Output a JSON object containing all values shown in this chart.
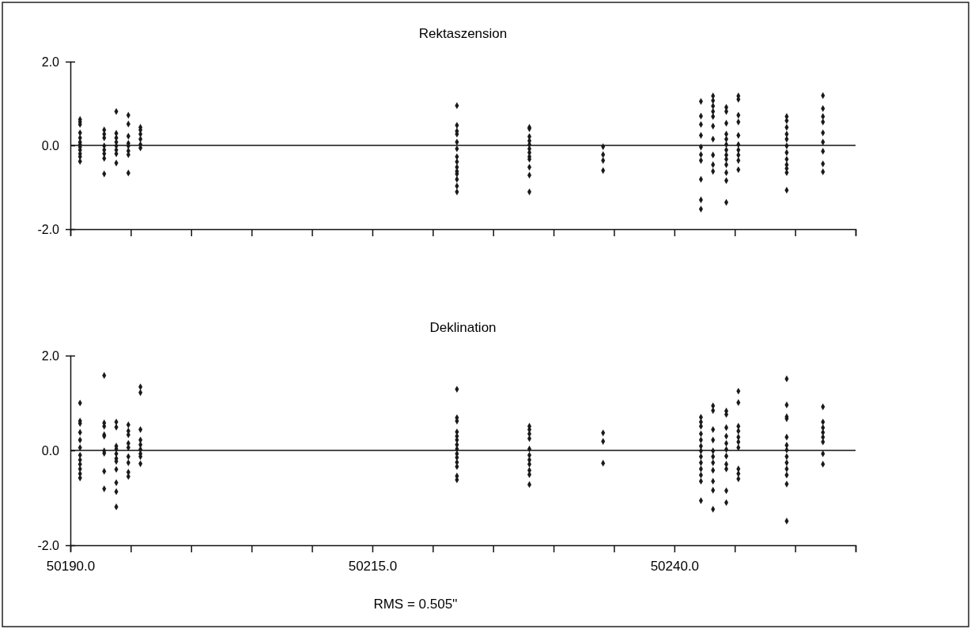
{
  "chart_data": [
    {
      "type": "scatter",
      "title": "Rektaszension",
      "xlim": [
        50190,
        50255
      ],
      "ylim": [
        -2,
        2
      ],
      "yticks": [
        {
          "value": 2,
          "label": "2.0"
        },
        {
          "value": 0,
          "label": "0.0"
        },
        {
          "value": -2,
          "label": "-2.0"
        }
      ],
      "xticks": [
        {
          "value": 50190,
          "label": null
        },
        {
          "value": 50195,
          "label": null
        },
        {
          "value": 50200,
          "label": null
        },
        {
          "value": 50205,
          "label": null
        },
        {
          "value": 50210,
          "label": null
        },
        {
          "value": 50215,
          "label": null
        },
        {
          "value": 50220,
          "label": null
        },
        {
          "value": 50225,
          "label": null
        },
        {
          "value": 50230,
          "label": null
        },
        {
          "value": 50235,
          "label": null
        },
        {
          "value": 50240,
          "label": null
        },
        {
          "value": 50245,
          "label": null
        },
        {
          "value": 50250,
          "label": null
        },
        {
          "value": 50255,
          "label": null
        }
      ],
      "tick_labels": "y",
      "marker": "diamond",
      "ref_lines": [
        {
          "axis": "y",
          "value": 0
        }
      ],
      "series": [
        {
          "color": "#1a1a1a",
          "x": [
            50190.8,
            50190.8,
            50190.8,
            50190.8,
            50190.8,
            50190.8,
            50190.8,
            50190.8,
            50190.8,
            50190.8,
            50190.8,
            50190.8,
            50192.8,
            50192.8,
            50192.8,
            50192.8,
            50192.8,
            50192.8,
            50192.8,
            50192.8,
            50193.8,
            50193.8,
            50193.8,
            50193.8,
            50193.8,
            50193.8,
            50193.8,
            50193.8,
            50194.8,
            50194.8,
            50194.8,
            50194.8,
            50194.8,
            50194.8,
            50194.8,
            50194.8,
            50195.8,
            50195.8,
            50195.8,
            50195.8,
            50195.8,
            50195.8,
            50222.0,
            50222.0,
            50222.0,
            50222.0,
            50222.0,
            50222.0,
            50222.0,
            50222.0,
            50222.0,
            50222.0,
            50222.0,
            50222.0,
            50222.0,
            50222.0,
            50228.0,
            50228.0,
            50228.0,
            50228.0,
            50228.0,
            50228.0,
            50228.0,
            50228.0,
            50228.0,
            50228.0,
            50228.0,
            50228.0,
            50234.1,
            50234.1,
            50234.1,
            50234.1,
            50242.2,
            50242.2,
            50242.2,
            50242.2,
            50242.2,
            50242.2,
            50242.2,
            50242.2,
            50242.2,
            50242.2,
            50243.2,
            50243.2,
            50243.2,
            50243.2,
            50243.2,
            50243.2,
            50243.2,
            50243.2,
            50243.2,
            50243.2,
            50244.3,
            50244.3,
            50244.3,
            50244.3,
            50244.3,
            50244.3,
            50244.3,
            50244.3,
            50244.3,
            50244.3,
            50244.3,
            50244.3,
            50244.3,
            50245.3,
            50245.3,
            50245.3,
            50245.3,
            50245.3,
            50245.3,
            50245.3,
            50245.3,
            50245.3,
            50245.3,
            50249.3,
            50249.3,
            50249.3,
            50249.3,
            50249.3,
            50249.3,
            50249.3,
            50249.3,
            50249.3,
            50249.3,
            50249.3,
            50249.3,
            50252.3,
            50252.3,
            50252.3,
            50252.3,
            50252.3,
            50252.3,
            50252.3,
            50252.3,
            50252.3
          ],
          "values": [
            0.62,
            0.56,
            0.5,
            0.3,
            0.18,
            0.08,
            0.02,
            -0.04,
            -0.11,
            -0.2,
            -0.27,
            -0.38,
            0.37,
            0.27,
            0.18,
            -0.01,
            -0.11,
            -0.2,
            -0.31,
            -0.68,
            0.81,
            0.29,
            0.18,
            0.08,
            -0.01,
            -0.11,
            -0.2,
            -0.42,
            0.72,
            0.51,
            0.22,
            0.05,
            -0.01,
            -0.13,
            -0.22,
            -0.66,
            0.43,
            0.37,
            0.27,
            0.15,
            0.02,
            -0.06,
            0.95,
            0.48,
            0.34,
            0.27,
            0.08,
            -0.08,
            -0.27,
            -0.39,
            -0.52,
            -0.62,
            -0.68,
            -0.81,
            -0.97,
            -1.11,
            0.43,
            0.4,
            0.21,
            0.11,
            0.02,
            -0.08,
            -0.17,
            -0.27,
            -0.33,
            -0.52,
            -0.71,
            -1.11,
            -0.03,
            -0.22,
            -0.36,
            -0.6,
            1.05,
            0.7,
            0.5,
            0.24,
            -0.04,
            -0.22,
            -0.36,
            -0.81,
            -1.3,
            -1.52,
            1.18,
            1.07,
            0.94,
            0.81,
            0.69,
            0.46,
            0.15,
            -0.23,
            -0.46,
            -0.62,
            0.91,
            0.81,
            0.53,
            0.27,
            0.15,
            0.02,
            -0.11,
            -0.23,
            -0.33,
            -0.46,
            -0.65,
            -0.84,
            -1.36,
            1.18,
            1.1,
            0.72,
            0.56,
            0.24,
            0.02,
            -0.11,
            -0.23,
            -0.36,
            -0.58,
            0.69,
            0.59,
            0.43,
            0.27,
            0.15,
            -0.01,
            -0.17,
            -0.33,
            -0.46,
            -0.55,
            -0.65,
            -1.07,
            1.19,
            0.88,
            0.69,
            0.56,
            0.3,
            0.08,
            -0.14,
            -0.44,
            -0.63
          ]
        }
      ]
    },
    {
      "type": "scatter",
      "title": "Deklination",
      "xlim": [
        50190,
        50255
      ],
      "ylim": [
        -2,
        2
      ],
      "yticks": [
        {
          "value": 2,
          "label": "2.0"
        },
        {
          "value": 0,
          "label": "0.0"
        },
        {
          "value": -2,
          "label": "-2.0"
        }
      ],
      "xticks": [
        {
          "value": 50190,
          "label": "50190.0"
        },
        {
          "value": 50195,
          "label": null
        },
        {
          "value": 50200,
          "label": null
        },
        {
          "value": 50205,
          "label": null
        },
        {
          "value": 50210,
          "label": null
        },
        {
          "value": 50215,
          "label": "50215.0"
        },
        {
          "value": 50220,
          "label": null
        },
        {
          "value": 50225,
          "label": null
        },
        {
          "value": 50230,
          "label": null
        },
        {
          "value": 50235,
          "label": null
        },
        {
          "value": 50240,
          "label": "50240.0"
        },
        {
          "value": 50245,
          "label": null
        },
        {
          "value": 50250,
          "label": null
        },
        {
          "value": 50255,
          "label": null
        }
      ],
      "marker": "diamond",
      "ref_lines": [
        {
          "axis": "y",
          "value": 0
        }
      ],
      "annotations": [
        "RMS = 0.505''"
      ],
      "series": [
        {
          "color": "#1a1a1a",
          "x": [
            50190.8,
            50190.8,
            50190.8,
            50190.8,
            50190.8,
            50190.8,
            50190.8,
            50190.8,
            50190.8,
            50190.8,
            50190.8,
            50190.8,
            50192.8,
            50192.8,
            50192.8,
            50192.8,
            50192.8,
            50192.8,
            50192.8,
            50192.8,
            50192.8,
            50193.8,
            50193.8,
            50193.8,
            50193.8,
            50193.8,
            50193.8,
            50193.8,
            50193.8,
            50193.8,
            50193.8,
            50193.8,
            50194.8,
            50194.8,
            50194.8,
            50194.8,
            50194.8,
            50194.8,
            50194.8,
            50194.8,
            50194.8,
            50195.8,
            50195.8,
            50195.8,
            50195.8,
            50195.8,
            50195.8,
            50195.8,
            50195.8,
            50195.8,
            50222.0,
            50222.0,
            50222.0,
            50222.0,
            50222.0,
            50222.0,
            50222.0,
            50222.0,
            50222.0,
            50222.0,
            50222.0,
            50222.0,
            50222.0,
            50222.0,
            50228.0,
            50228.0,
            50228.0,
            50228.0,
            50228.0,
            50228.0,
            50228.0,
            50228.0,
            50228.0,
            50228.0,
            50228.0,
            50234.1,
            50234.1,
            50234.1,
            50242.2,
            50242.2,
            50242.2,
            50242.2,
            50242.2,
            50242.2,
            50242.2,
            50242.2,
            50242.2,
            50242.2,
            50242.2,
            50242.2,
            50242.2,
            50243.2,
            50243.2,
            50243.2,
            50243.2,
            50243.2,
            50243.2,
            50243.2,
            50243.2,
            50243.2,
            50243.2,
            50243.2,
            50244.3,
            50244.3,
            50244.3,
            50244.3,
            50244.3,
            50244.3,
            50244.3,
            50244.3,
            50244.3,
            50244.3,
            50244.3,
            50245.3,
            50245.3,
            50245.3,
            50245.3,
            50245.3,
            50245.3,
            50245.3,
            50245.3,
            50245.3,
            50245.3,
            50249.3,
            50249.3,
            50249.3,
            50249.3,
            50249.3,
            50249.3,
            50249.3,
            50249.3,
            50249.3,
            50249.3,
            50249.3,
            50249.3,
            50249.3,
            50252.3,
            50252.3,
            50252.3,
            50252.3,
            50252.3,
            50252.3,
            50252.3,
            50252.3
          ],
          "values": [
            1.0,
            0.62,
            0.57,
            0.38,
            0.22,
            0.06,
            -0.1,
            -0.2,
            -0.29,
            -0.39,
            -0.49,
            -0.58,
            1.58,
            0.58,
            0.51,
            0.33,
            0.3,
            -0.01,
            -0.06,
            -0.44,
            -0.81,
            0.6,
            0.49,
            0.09,
            0.03,
            -0.07,
            -0.17,
            -0.23,
            -0.4,
            -0.68,
            -0.87,
            -1.19,
            0.54,
            0.41,
            0.33,
            0.15,
            0.06,
            -0.13,
            -0.26,
            -0.46,
            -0.55,
            1.34,
            1.22,
            0.44,
            0.22,
            0.12,
            0.02,
            -0.07,
            -0.13,
            -0.28,
            1.29,
            0.69,
            0.62,
            0.39,
            0.3,
            0.22,
            0.12,
            0.03,
            -0.07,
            -0.15,
            -0.25,
            -0.34,
            -0.54,
            -0.62,
            0.51,
            0.44,
            0.35,
            0.25,
            0.03,
            -0.1,
            -0.2,
            -0.29,
            -0.42,
            -0.51,
            -0.72,
            0.37,
            0.19,
            -0.27,
            0.7,
            0.6,
            0.51,
            0.35,
            0.22,
            0.09,
            -0.01,
            -0.13,
            -0.26,
            -0.39,
            -0.52,
            -0.65,
            -1.06,
            0.94,
            0.84,
            0.44,
            0.22,
            -0.01,
            -0.13,
            -0.26,
            -0.42,
            -0.65,
            -0.84,
            -1.24,
            0.83,
            0.76,
            0.48,
            0.3,
            0.15,
            0.02,
            -0.12,
            -0.29,
            -0.39,
            -0.85,
            -1.1,
            1.25,
            1.01,
            0.51,
            0.41,
            0.28,
            0.18,
            0.06,
            -0.39,
            -0.49,
            -0.6,
            1.51,
            0.96,
            0.71,
            0.67,
            0.28,
            0.11,
            0.01,
            -0.13,
            -0.26,
            -0.39,
            -0.52,
            -0.71,
            -1.49,
            0.92,
            0.6,
            0.48,
            0.38,
            0.28,
            0.18,
            -0.07,
            -0.29
          ]
        }
      ]
    }
  ]
}
